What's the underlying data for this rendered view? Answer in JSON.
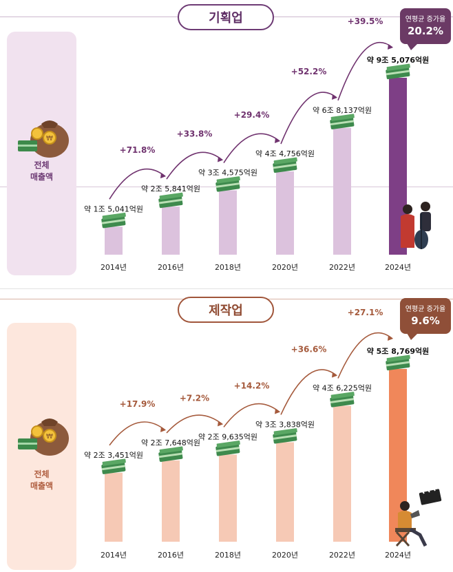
{
  "chart_data": [
    {
      "type": "bar",
      "title": "기획업",
      "side_label": "전체\n매출액",
      "cagr_label": "연평균 증가율",
      "cagr_value": "20.2%",
      "categories": [
        "2014년",
        "2016년",
        "2018년",
        "2020년",
        "2022년",
        "2024년"
      ],
      "values": [
        15041,
        25841,
        34575,
        44756,
        68137,
        95076
      ],
      "value_labels": [
        "약 1조 5,041억원",
        "약 2조 5,841억원",
        "약 3조 4,575억원",
        "약 4조 4,756억원",
        "약 6조 8,137억원",
        "약 9조 5,076억원"
      ],
      "growth_labels": [
        "+71.8%",
        "+33.8%",
        "+29.4%",
        "+52.2%",
        "+39.5%"
      ],
      "unit": "억원",
      "colors": {
        "bar": "#dcc2dd",
        "highlight": "#7e3f86",
        "accent": "#70336f",
        "sidebar": "#f1e2ef",
        "line": "#d7bcd8"
      }
    },
    {
      "type": "bar",
      "title": "제작업",
      "side_label": "전체\n매출액",
      "cagr_label": "연평균 증가율",
      "cagr_value": "9.6%",
      "categories": [
        "2014년",
        "2016년",
        "2018년",
        "2020년",
        "2022년",
        "2024년"
      ],
      "values": [
        23451,
        27648,
        29635,
        33838,
        46225,
        58769
      ],
      "value_labels": [
        "약 2조 3,451억원",
        "약 2조 7,648억원",
        "약 2조 9,635억원",
        "약 3조 3,838억원",
        "약 4조 6,225억원",
        "약 5조 8,769억원"
      ],
      "growth_labels": [
        "+17.9%",
        "+7.2%",
        "+14.2%",
        "+36.6%",
        "+27.1%"
      ],
      "unit": "억원",
      "colors": {
        "bar": "#f6c9b5",
        "highlight": "#f0875a",
        "accent": "#a55a3c",
        "sidebar": "#fde7dd",
        "line": "#e9c3b4"
      }
    }
  ]
}
